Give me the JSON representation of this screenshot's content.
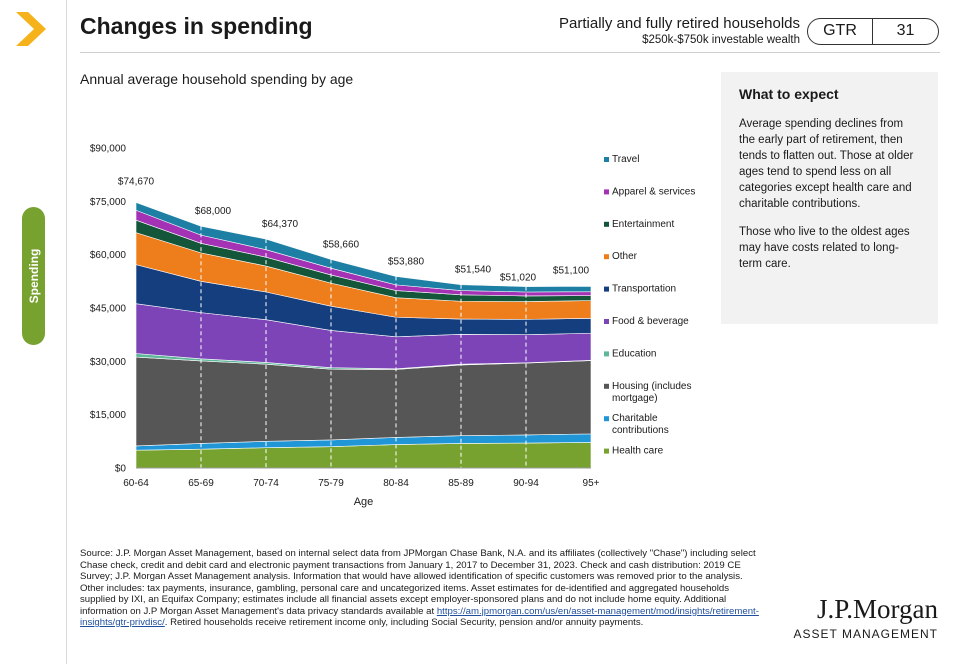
{
  "header": {
    "title": "Changes in spending",
    "audience": "Partially and fully retired households",
    "wealth_range": "$250k-$750k investable wealth",
    "badge_left": "GTR",
    "badge_right": "31"
  },
  "side_tab": {
    "label": "Spending"
  },
  "subtitle": "Annual average household spending by age",
  "what_to_expect": {
    "heading": "What to expect",
    "paragraphs": [
      "Average spending declines from the early part of retirement, then tends to flatten out. Those at older ages tend to spend less on all categories except health care and charitable contributions.",
      "Those who live to the oldest ages may have costs related to long-term care."
    ]
  },
  "source": {
    "text_before_link": "Source: J.P. Morgan Asset Management, based on internal select data from JPMorgan Chase Bank, N.A. and its affiliates (collectively \"Chase\") including select Chase check, credit and debit card and electronic payment transactions from January 1, 2017 to December 31, 2023. Check and cash distribution: 2019 CE Survey; J.P. Morgan Asset Management analysis. Information that would have allowed identification of specific customers was removed prior to the analysis. Other includes: tax payments, insurance, gambling, personal care and uncategorized items. Asset estimates for de-identified and aggregated households supplied by IXI, an Equifax Company; estimates include all financial assets except employer-sponsored plans and do not include home equity. Additional information on J.P Morgan Asset Management's data privacy standards available at ",
    "link": "https://am.jpmorgan.com/us/en/asset-management/mod/insights/retirement-insights/gtr-privdisc/",
    "text_after_link": ". Retired households receive retirement income only, including Social Security, pension and/or annuity payments."
  },
  "logo": {
    "line1": "J.P.Morgan",
    "line2": "ASSET MANAGEMENT"
  },
  "chart_data": {
    "type": "area",
    "stacked": true,
    "xlabel": "Age",
    "categories": [
      "60-64",
      "65-69",
      "70-74",
      "75-79",
      "80-84",
      "85-89",
      "90-94",
      "95+"
    ],
    "ylim": [
      0,
      90000
    ],
    "yticks": [
      0,
      15000,
      30000,
      45000,
      60000,
      75000,
      90000
    ],
    "ytick_labels": [
      "$0",
      "$15,000",
      "$30,000",
      "$45,000",
      "$60,000",
      "$75,000",
      "$90,000"
    ],
    "totals": [
      "$74,670",
      "$68,000",
      "$64,370",
      "$58,660",
      "$53,880",
      "$51,540",
      "$51,020",
      "$51,100"
    ],
    "series": [
      {
        "name": "Health care",
        "color": "#78a22f",
        "values": [
          5000,
          5300,
          5700,
          6000,
          6600,
          6900,
          7000,
          7200
        ]
      },
      {
        "name": "Charitable contributions",
        "color": "#2196d6",
        "values": [
          1200,
          1600,
          1800,
          1900,
          2000,
          2200,
          2300,
          2400
        ]
      },
      {
        "name": "Housing (includes mortgage)",
        "color": "#565656",
        "values": [
          25000,
          23200,
          21700,
          19900,
          19100,
          19900,
          20200,
          20600
        ]
      },
      {
        "name": "Education",
        "color": "#5fb79a",
        "values": [
          1000,
          600,
          500,
          400,
          200,
          200,
          100,
          100
        ]
      },
      {
        "name": "Food & beverage",
        "color": "#7d44b8",
        "values": [
          14000,
          13000,
          12000,
          10500,
          9000,
          8400,
          7900,
          7600
        ]
      },
      {
        "name": "Transportation",
        "color": "#153e7e",
        "values": [
          11000,
          8800,
          7800,
          6800,
          5500,
          4300,
          4300,
          4200
        ]
      },
      {
        "name": "Other",
        "color": "#ee7d1c",
        "values": [
          9000,
          8000,
          7300,
          6500,
          5500,
          5000,
          5000,
          5000
        ]
      },
      {
        "name": "Entertainment",
        "color": "#14563a",
        "values": [
          3500,
          2700,
          2500,
          2300,
          2000,
          1800,
          1600,
          1400
        ]
      },
      {
        "name": "Apparel & services",
        "color": "#a332b4",
        "values": [
          2800,
          2300,
          2100,
          1900,
          1600,
          1200,
          1100,
          1100
        ]
      },
      {
        "name": "Travel",
        "color": "#1c7fa3",
        "values": [
          2170,
          2500,
          2970,
          2460,
          2380,
          1640,
          1520,
          1500
        ]
      }
    ],
    "legend_order": [
      "Travel",
      "Apparel & services",
      "Entertainment",
      "Other",
      "Transportation",
      "Food & beverage",
      "Education",
      "Housing (includes mortgage)",
      "Charitable contributions",
      "Health care"
    ],
    "legend_placement": "right"
  }
}
